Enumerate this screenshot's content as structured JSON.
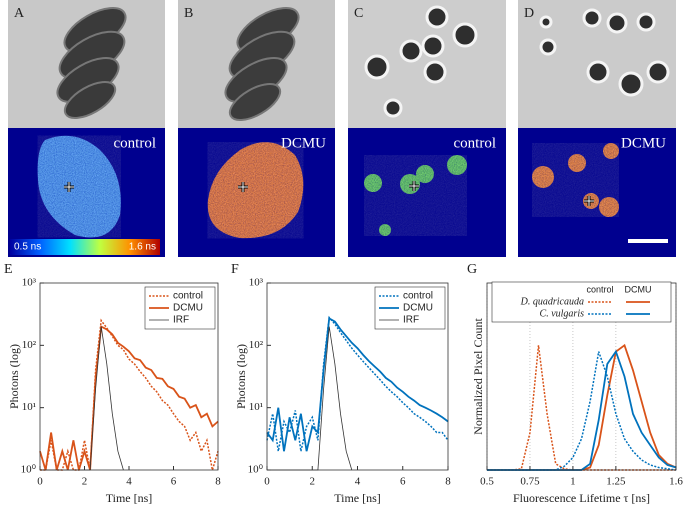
{
  "panels": [
    {
      "label": "A",
      "caption": "control"
    },
    {
      "label": "B",
      "caption": "DCMU"
    },
    {
      "label": "C",
      "caption": "control"
    },
    {
      "label": "D",
      "caption": "DCMU"
    }
  ],
  "colorbar": {
    "min_label": "0.5 ns",
    "max_label": "1.6 ns"
  },
  "chart_data": [
    {
      "type": "line",
      "panel_label": "E",
      "xlabel": "Time [ns]",
      "ylabel": "Photons (log)",
      "yscale": "log",
      "xlim": [
        0,
        8
      ],
      "xticks": [
        0,
        2,
        4,
        6,
        8
      ],
      "ylim": [
        1,
        1000
      ],
      "yticks": [
        {
          "value": 1,
          "label": "10⁰"
        },
        {
          "value": 10,
          "label": "10¹"
        },
        {
          "value": 100,
          "label": "10²"
        },
        {
          "value": 1000,
          "label": "10³"
        }
      ],
      "legend": "top-right",
      "x": [
        0,
        0.25,
        0.5,
        0.75,
        1,
        1.25,
        1.5,
        1.75,
        2,
        2.25,
        2.5,
        2.75,
        3,
        3.25,
        3.5,
        3.75,
        4,
        4.25,
        4.5,
        4.75,
        5,
        5.25,
        5.5,
        5.75,
        6,
        6.25,
        6.5,
        6.75,
        7,
        7.25,
        7.5,
        7.75,
        8
      ],
      "series": [
        {
          "name": "control",
          "color": "#d95319",
          "style": "dotted",
          "values": [
            1,
            1,
            3,
            1,
            1,
            2,
            1,
            1,
            3,
            1,
            40,
            250,
            190,
            140,
            100,
            85,
            60,
            50,
            38,
            30,
            22,
            18,
            13,
            11,
            8,
            6,
            5,
            3,
            4,
            2,
            3,
            1,
            2
          ]
        },
        {
          "name": "DCMU",
          "color": "#d95319",
          "style": "solid",
          "values": [
            2,
            1,
            4,
            1,
            2,
            1,
            3,
            1,
            2,
            1,
            30,
            200,
            180,
            150,
            110,
            95,
            80,
            62,
            58,
            44,
            40,
            30,
            29,
            22,
            20,
            15,
            14,
            10,
            11,
            7,
            8,
            5,
            6
          ]
        },
        {
          "name": "IRF",
          "color": "#333333",
          "style": "thin",
          "values": [
            1,
            1,
            1,
            1,
            1,
            1,
            1,
            1,
            1,
            1,
            20,
            200,
            50,
            8,
            2,
            1,
            null,
            null,
            null,
            null,
            null,
            null,
            null,
            null,
            null,
            null,
            null,
            null,
            null,
            null,
            null,
            null,
            null
          ]
        }
      ]
    },
    {
      "type": "line",
      "panel_label": "F",
      "xlabel": "Time [ns]",
      "ylabel": "Photons (log)",
      "yscale": "log",
      "xlim": [
        0,
        8
      ],
      "xticks": [
        0,
        2,
        4,
        6,
        8
      ],
      "ylim": [
        1,
        1000
      ],
      "yticks": [
        {
          "value": 1,
          "label": "10⁰"
        },
        {
          "value": 10,
          "label": "10¹"
        },
        {
          "value": 100,
          "label": "10²"
        },
        {
          "value": 1000,
          "label": "10³"
        }
      ],
      "legend": "top-right",
      "x": [
        0,
        0.25,
        0.5,
        0.75,
        1,
        1.25,
        1.5,
        1.75,
        2,
        2.25,
        2.5,
        2.75,
        3,
        3.25,
        3.5,
        3.75,
        4,
        4.25,
        4.5,
        4.75,
        5,
        5.25,
        5.5,
        5.75,
        6,
        6.25,
        6.5,
        6.75,
        7,
        7.25,
        7.5,
        7.75,
        8
      ],
      "series": [
        {
          "name": "control",
          "color": "#0072bd",
          "style": "dotted",
          "values": [
            3,
            8,
            2,
            6,
            4,
            9,
            2,
            5,
            7,
            3,
            50,
            280,
            220,
            160,
            120,
            90,
            70,
            55,
            44,
            35,
            28,
            22,
            18,
            15,
            12,
            10,
            8,
            7,
            6,
            5,
            4,
            4,
            3
          ]
        },
        {
          "name": "DCMU",
          "color": "#0072bd",
          "style": "solid",
          "values": [
            4,
            3,
            10,
            2,
            7,
            3,
            8,
            2,
            5,
            4,
            40,
            270,
            240,
            180,
            140,
            110,
            90,
            70,
            56,
            46,
            38,
            30,
            26,
            21,
            18,
            15,
            13,
            11,
            10,
            9,
            8,
            7,
            6
          ]
        },
        {
          "name": "IRF",
          "color": "#333333",
          "style": "thin",
          "values": [
            1,
            1,
            1,
            1,
            1,
            1,
            1,
            1,
            1,
            1,
            20,
            200,
            50,
            8,
            2,
            1,
            null,
            null,
            null,
            null,
            null,
            null,
            null,
            null,
            null,
            null,
            null,
            null,
            null,
            null,
            null,
            null,
            null
          ]
        }
      ]
    },
    {
      "type": "line",
      "panel_label": "G",
      "xlabel": "Fluorescence Lifetime τ [ns]",
      "ylabel": "Normalized Pixel Count",
      "xlim": [
        0.5,
        1.6
      ],
      "xticks": [
        0.5,
        0.75,
        1,
        1.25,
        1.6
      ],
      "ylim": [
        0,
        1.5
      ],
      "grid": true,
      "x": [
        0.5,
        0.55,
        0.6,
        0.65,
        0.7,
        0.75,
        0.8,
        0.85,
        0.9,
        0.95,
        1,
        1.05,
        1.1,
        1.15,
        1.2,
        1.25,
        1.3,
        1.35,
        1.4,
        1.45,
        1.5,
        1.55,
        1.6
      ],
      "legend_table": {
        "columns": [
          "control",
          "DCMU"
        ],
        "rows": [
          {
            "name": "D. quadricauda",
            "series": [
              {
                "color": "#d95319",
                "style": "dotted",
                "values": [
                  0,
                  0,
                  0,
                  0,
                  0.01,
                  0.3,
                  1,
                  0.45,
                  0.05,
                  0.01,
                  0,
                  0,
                  0,
                  0,
                  0,
                  0,
                  0,
                  0,
                  0,
                  0,
                  0,
                  0,
                  0
                ]
              },
              {
                "color": "#d95319",
                "style": "solid",
                "values": [
                  0,
                  0,
                  0,
                  0,
                  0,
                  0,
                  0,
                  0,
                  0,
                  0,
                  0,
                  0,
                  0.02,
                  0.2,
                  0.6,
                  0.95,
                  1,
                  0.8,
                  0.55,
                  0.3,
                  0.12,
                  0.05,
                  0.02
                ]
              }
            ]
          },
          {
            "name": "C. vulgaris",
            "series": [
              {
                "color": "#0072bd",
                "style": "dotted",
                "values": [
                  0,
                  0,
                  0,
                  0,
                  0,
                  0,
                  0,
                  0,
                  0,
                  0.03,
                  0.1,
                  0.25,
                  0.55,
                  0.95,
                  0.75,
                  0.45,
                  0.25,
                  0.15,
                  0.08,
                  0.04,
                  0.02,
                  0.01,
                  0
                ]
              },
              {
                "color": "#0072bd",
                "style": "solid",
                "values": [
                  0,
                  0,
                  0,
                  0,
                  0,
                  0,
                  0,
                  0,
                  0,
                  0,
                  0,
                  0,
                  0.05,
                  0.4,
                  0.85,
                  0.95,
                  0.75,
                  0.45,
                  0.3,
                  0.2,
                  0.1,
                  0.04,
                  0.02
                ]
              }
            ]
          }
        ]
      }
    }
  ]
}
